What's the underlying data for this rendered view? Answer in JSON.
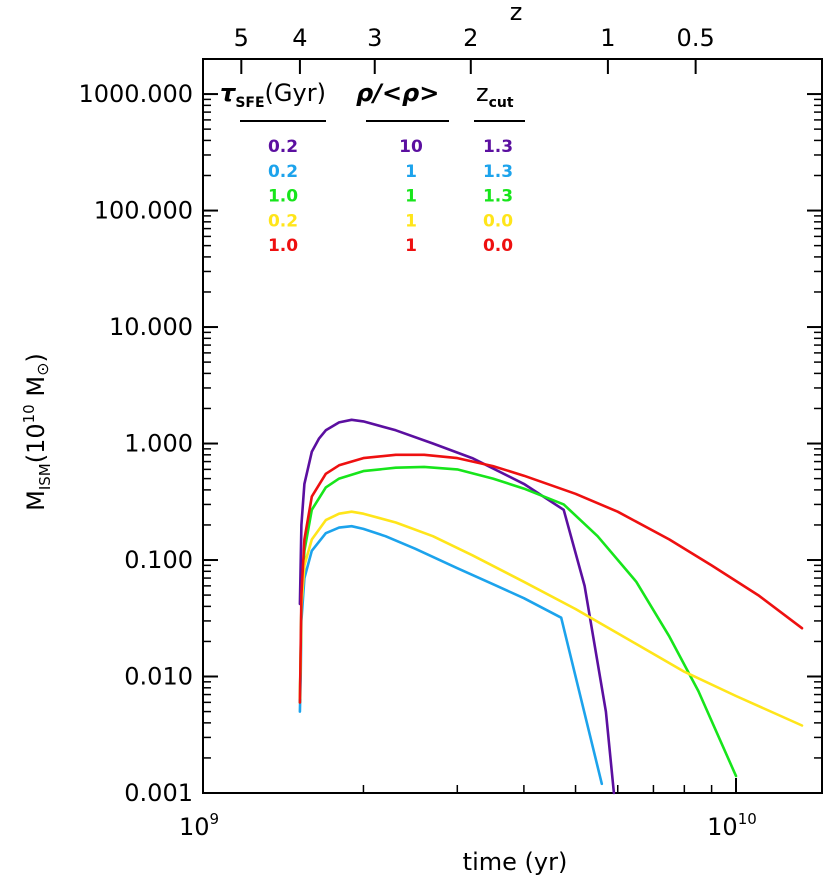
{
  "chart_data": {
    "type": "line",
    "x_scale": "log",
    "y_scale": "log",
    "xlim": [
      1000000000.0,
      14500000000.0
    ],
    "ylim": [
      0.001,
      2000
    ],
    "xlabel": "time (yr)",
    "ylabel": "M",
    "ylabel_sub": "ISM",
    "ylabel_tail": "(10",
    "ylabel_sup": "10",
    "ylabel_unit": " M",
    "ylabel_close": ")",
    "top_axis_label": "z",
    "x_ticks": [
      {
        "value": 1000000000.0,
        "base": "10",
        "exp": "9"
      },
      {
        "value": 10000000000.0,
        "base": "10",
        "exp": "10"
      }
    ],
    "y_ticks": [
      {
        "value": 0.001,
        "label": "0.001"
      },
      {
        "value": 0.01,
        "label": "0.010"
      },
      {
        "value": 0.1,
        "label": "0.100"
      },
      {
        "value": 1,
        "label": "1.000"
      },
      {
        "value": 10,
        "label": "10.000"
      },
      {
        "value": 100,
        "label": "100.000"
      },
      {
        "value": 1000,
        "label": "1000.000"
      }
    ],
    "top_ticks": [
      {
        "label": "5",
        "time": 1180000000.0
      },
      {
        "label": "4",
        "time": 1520000000.0
      },
      {
        "label": "3",
        "time": 2100000000.0
      },
      {
        "label": "2",
        "time": 3180000000.0
      },
      {
        "label": "1",
        "time": 5750000000.0
      },
      {
        "label": "0.5",
        "time": 8400000000.0
      }
    ],
    "table": {
      "headers": [
        {
          "main": "τ",
          "sub": "SFE",
          "tail": "(Gyr)"
        },
        {
          "main": "ρ/<ρ>"
        },
        {
          "main": "z",
          "sub": "cut"
        }
      ],
      "rows": [
        {
          "tau": "0.2",
          "rho": "10",
          "zcut": "1.3"
        },
        {
          "tau": "0.2",
          "rho": "1",
          "zcut": "1.3"
        },
        {
          "tau": "1.0",
          "rho": "1",
          "zcut": "1.3"
        },
        {
          "tau": "0.2",
          "rho": "1",
          "zcut": "0.0"
        },
        {
          "tau": "1.0",
          "rho": "1",
          "zcut": "0.0"
        }
      ]
    },
    "series": [
      {
        "color": "#5b0fa0",
        "x": [
          1520000000.0,
          1530000000.0,
          1550000000.0,
          1600000000.0,
          1650000000.0,
          1700000000.0,
          1800000000.0,
          1900000000.0,
          2000000000.0,
          2300000000.0,
          2700000000.0,
          3200000000.0,
          4000000000.0,
          4750000000.0,
          5200000000.0,
          5700000000.0,
          5900000000.0
        ],
        "y": [
          0.042,
          0.2,
          0.45,
          0.85,
          1.1,
          1.3,
          1.52,
          1.6,
          1.55,
          1.3,
          1.0,
          0.75,
          0.45,
          0.27,
          0.06,
          0.005,
          0.001
        ]
      },
      {
        "color": "#1ca3ec",
        "x": [
          1520000000.0,
          1525000000.0,
          1530000000.0,
          1550000000.0,
          1600000000.0,
          1700000000.0,
          1800000000.0,
          1900000000.0,
          2000000000.0,
          2200000000.0,
          2500000000.0,
          3000000000.0,
          3500000000.0,
          4000000000.0,
          4700000000.0,
          5600000000.0
        ],
        "y": [
          0.005,
          0.01,
          0.03,
          0.07,
          0.12,
          0.17,
          0.19,
          0.195,
          0.185,
          0.16,
          0.125,
          0.085,
          0.062,
          0.047,
          0.032,
          0.0012
        ]
      },
      {
        "color": "#17e51b",
        "x": [
          1520000000.0,
          1530000000.0,
          1550000000.0,
          1600000000.0,
          1700000000.0,
          1800000000.0,
          2000000000.0,
          2300000000.0,
          2600000000.0,
          3000000000.0,
          3500000000.0,
          4000000000.0,
          4750000000.0,
          5500000000.0,
          6500000000.0,
          7500000000.0,
          8500000000.0,
          10000000000.0
        ],
        "y": [
          0.006,
          0.04,
          0.12,
          0.27,
          0.42,
          0.5,
          0.58,
          0.62,
          0.63,
          0.6,
          0.5,
          0.41,
          0.3,
          0.16,
          0.065,
          0.022,
          0.0075,
          0.0014
        ]
      },
      {
        "color": "#ffe51a",
        "x": [
          1520000000.0,
          1525000000.0,
          1530000000.0,
          1550000000.0,
          1600000000.0,
          1700000000.0,
          1800000000.0,
          1900000000.0,
          2000000000.0,
          2300000000.0,
          2700000000.0,
          3200000000.0,
          4000000000.0,
          5000000000.0,
          6500000000.0,
          8000000000.0,
          10000000000.0,
          13300000000.0
        ],
        "y": [
          0.0065,
          0.015,
          0.04,
          0.09,
          0.15,
          0.22,
          0.25,
          0.26,
          0.25,
          0.21,
          0.16,
          0.11,
          0.065,
          0.038,
          0.019,
          0.011,
          0.0068,
          0.0038
        ]
      },
      {
        "color": "#ee1010",
        "x": [
          1520000000.0,
          1530000000.0,
          1550000000.0,
          1600000000.0,
          1700000000.0,
          1800000000.0,
          2000000000.0,
          2300000000.0,
          2600000000.0,
          3000000000.0,
          3500000000.0,
          4000000000.0,
          5000000000.0,
          6000000000.0,
          7500000000.0,
          9000000000.0,
          11000000000.0,
          13300000000.0
        ],
        "y": [
          0.006,
          0.05,
          0.15,
          0.35,
          0.55,
          0.65,
          0.75,
          0.8,
          0.8,
          0.75,
          0.64,
          0.53,
          0.37,
          0.26,
          0.15,
          0.09,
          0.05,
          0.026
        ]
      }
    ]
  }
}
